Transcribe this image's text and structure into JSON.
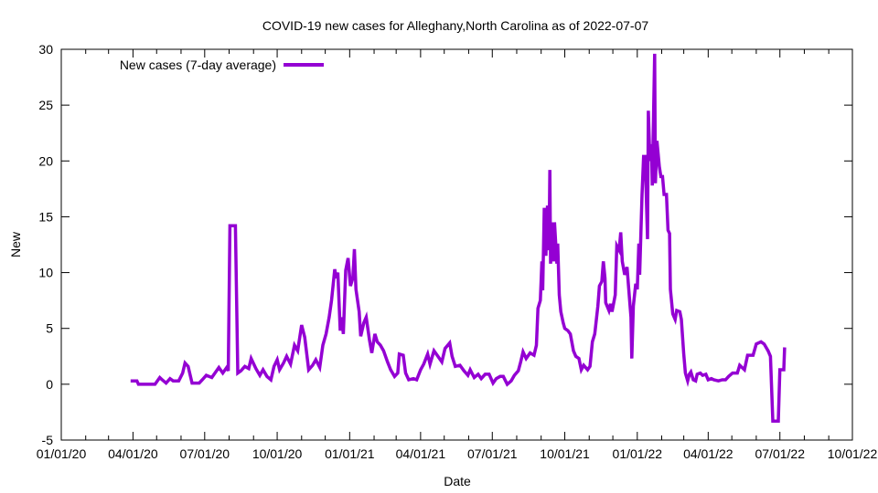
{
  "chart_data": {
    "type": "line",
    "title": "COVID-19 new cases for Alleghany,North Carolina as of 2022-07-07",
    "xlabel": "Date",
    "ylabel": "New",
    "xlim": [
      "2020-01-01",
      "2022-10-01"
    ],
    "ylim": [
      -5,
      30
    ],
    "grid": false,
    "legend_position": "top-left",
    "x_ticks": [
      {
        "date": "2020-01-01",
        "label": "01/01/20"
      },
      {
        "date": "2020-04-01",
        "label": "04/01/20"
      },
      {
        "date": "2020-07-01",
        "label": "07/01/20"
      },
      {
        "date": "2020-10-01",
        "label": "10/01/20"
      },
      {
        "date": "2021-01-01",
        "label": "01/01/21"
      },
      {
        "date": "2021-04-01",
        "label": "04/01/21"
      },
      {
        "date": "2021-07-01",
        "label": "07/01/21"
      },
      {
        "date": "2021-10-01",
        "label": "10/01/21"
      },
      {
        "date": "2022-01-01",
        "label": "01/01/22"
      },
      {
        "date": "2022-04-01",
        "label": "04/01/22"
      },
      {
        "date": "2022-07-01",
        "label": "07/01/22"
      },
      {
        "date": "2022-10-01",
        "label": "10/01/22"
      }
    ],
    "y_ticks": [
      -5,
      0,
      5,
      10,
      15,
      20,
      25,
      30
    ],
    "series": [
      {
        "name": "New cases (7-day average)",
        "color": "#9400d3",
        "dates": [
          "2020-03-29",
          "2020-04-06",
          "2020-04-08",
          "2020-04-29",
          "2020-05-05",
          "2020-05-08",
          "2020-05-13",
          "2020-05-18",
          "2020-05-22",
          "2020-05-29",
          "2020-06-03",
          "2020-06-06",
          "2020-06-10",
          "2020-06-15",
          "2020-06-24",
          "2020-06-28",
          "2020-07-03",
          "2020-07-10",
          "2020-07-19",
          "2020-07-24",
          "2020-07-29",
          "2020-07-31",
          "2020-08-02",
          "2020-08-09",
          "2020-08-12",
          "2020-08-16",
          "2020-08-21",
          "2020-08-26",
          "2020-08-29",
          "2020-09-04",
          "2020-09-09",
          "2020-09-13",
          "2020-09-18",
          "2020-09-23",
          "2020-09-27",
          "2020-10-01",
          "2020-10-04",
          "2020-10-09",
          "2020-10-13",
          "2020-10-18",
          "2020-10-23",
          "2020-10-27",
          "2020-11-01",
          "2020-11-05",
          "2020-11-10",
          "2020-11-15",
          "2020-11-19",
          "2020-11-24",
          "2020-11-28",
          "2020-12-02",
          "2020-12-06",
          "2020-12-09",
          "2020-12-13",
          "2020-12-15",
          "2020-12-17",
          "2020-12-20",
          "2020-12-22",
          "2020-12-24",
          "2020-12-27",
          "2020-12-30",
          "2021-01-02",
          "2021-01-05",
          "2021-01-07",
          "2021-01-09",
          "2021-01-13",
          "2021-01-15",
          "2021-01-19",
          "2021-01-22",
          "2021-01-26",
          "2021-01-29",
          "2021-02-02",
          "2021-02-05",
          "2021-02-09",
          "2021-02-13",
          "2021-02-18",
          "2021-02-22",
          "2021-02-27",
          "2021-03-03",
          "2021-03-05",
          "2021-03-10",
          "2021-03-13",
          "2021-03-17",
          "2021-03-23",
          "2021-03-27",
          "2021-04-01",
          "2021-04-05",
          "2021-04-10",
          "2021-04-13",
          "2021-04-18",
          "2021-04-23",
          "2021-04-28",
          "2021-05-02",
          "2021-05-08",
          "2021-05-11",
          "2021-05-15",
          "2021-05-21",
          "2021-05-26",
          "2021-05-31",
          "2021-06-03",
          "2021-06-08",
          "2021-06-13",
          "2021-06-17",
          "2021-06-22",
          "2021-06-27",
          "2021-07-02",
          "2021-07-06",
          "2021-07-11",
          "2021-07-15",
          "2021-07-20",
          "2021-07-25",
          "2021-07-29",
          "2021-08-03",
          "2021-08-06",
          "2021-08-09",
          "2021-08-13",
          "2021-08-18",
          "2021-08-23",
          "2021-08-26",
          "2021-08-28",
          "2021-08-31",
          "2021-09-02",
          "2021-09-03",
          "2021-09-05",
          "2021-09-07",
          "2021-09-09",
          "2021-09-11",
          "2021-09-12",
          "2021-09-13",
          "2021-09-16",
          "2021-09-17",
          "2021-09-18",
          "2021-09-21",
          "2021-09-22",
          "2021-09-24",
          "2021-09-26",
          "2021-09-29",
          "2021-10-01",
          "2021-10-05",
          "2021-10-08",
          "2021-10-12",
          "2021-10-15",
          "2021-10-19",
          "2021-10-22",
          "2021-10-25",
          "2021-10-30",
          "2021-11-02",
          "2021-11-05",
          "2021-11-08",
          "2021-11-12",
          "2021-11-14",
          "2021-11-17",
          "2021-11-19",
          "2021-11-21",
          "2021-11-22",
          "2021-11-26",
          "2021-11-28",
          "2021-11-30",
          "2021-12-04",
          "2021-12-06",
          "2021-12-09",
          "2021-12-11",
          "2021-12-13",
          "2021-12-16",
          "2021-12-19",
          "2021-12-21",
          "2021-12-24",
          "2021-12-25",
          "2021-12-27",
          "2021-12-30",
          "2022-01-01",
          "2022-01-03",
          "2022-01-04",
          "2022-01-07",
          "2022-01-09",
          "2022-01-11",
          "2022-01-14",
          "2022-01-15",
          "2022-01-17",
          "2022-01-19",
          "2022-01-20",
          "2022-01-23",
          "2022-01-24",
          "2022-01-26",
          "2022-01-29",
          "2022-01-31",
          "2022-02-02",
          "2022-02-04",
          "2022-02-07",
          "2022-02-09",
          "2022-02-11",
          "2022-02-12",
          "2022-02-15",
          "2022-02-18",
          "2022-02-20",
          "2022-02-24",
          "2022-02-26",
          "2022-03-01",
          "2022-03-03",
          "2022-03-06",
          "2022-03-08",
          "2022-03-10",
          "2022-03-13",
          "2022-03-16",
          "2022-03-18",
          "2022-03-22",
          "2022-03-25",
          "2022-03-29",
          "2022-04-01",
          "2022-04-05",
          "2022-04-08",
          "2022-04-14",
          "2022-04-19",
          "2022-04-23",
          "2022-04-27",
          "2022-05-02",
          "2022-05-08",
          "2022-05-11",
          "2022-05-17",
          "2022-05-21",
          "2022-05-28",
          "2022-06-01",
          "2022-06-07",
          "2022-06-11",
          "2022-06-16",
          "2022-06-19",
          "2022-06-22",
          "2022-06-29",
          "2022-07-01",
          "2022-07-06",
          "2022-07-07"
        ],
        "values": [
          0.3,
          0.3,
          0,
          0,
          0.6,
          0.4,
          0.1,
          0.5,
          0.3,
          0.3,
          1.0,
          1.9,
          1.6,
          0.1,
          0.1,
          0.4,
          0.8,
          0.6,
          1.5,
          1.0,
          1.5,
          1.2,
          14.2,
          14.2,
          1.0,
          1.2,
          1.6,
          1.4,
          2.3,
          1.4,
          0.8,
          1.3,
          0.7,
          0.4,
          1.6,
          2.2,
          1.3,
          1.9,
          2.5,
          1.8,
          3.5,
          3.0,
          5.3,
          4.2,
          1.3,
          1.7,
          2.2,
          1.5,
          3.5,
          4.5,
          6,
          7.5,
          10.3,
          9.5,
          10,
          4.8,
          6,
          4.5,
          10.2,
          11.3,
          8.8,
          9.5,
          12.1,
          8.5,
          6.5,
          4.3,
          5.5,
          6.0,
          4.0,
          2.8,
          4.5,
          3.8,
          3.5,
          3.0,
          2.0,
          1.3,
          0.7,
          1.0,
          2.7,
          2.6,
          1.0,
          0.4,
          0.5,
          0.4,
          1.3,
          1.8,
          2.7,
          1.8,
          3.0,
          2.5,
          2.0,
          3.2,
          3.7,
          2.5,
          1.6,
          1.7,
          1.2,
          0.8,
          1.3,
          0.6,
          0.9,
          0.5,
          0.9,
          0.9,
          0.1,
          0.5,
          0.7,
          0.7,
          0.0,
          0.3,
          0.8,
          1.2,
          2.0,
          2.9,
          2.3,
          2.8,
          2.6,
          3.5,
          6.8,
          7.5,
          11.0,
          8.4,
          15.8,
          11.5,
          16,
          12,
          19.2,
          10.8,
          14.5,
          11,
          14.5,
          10.8,
          12.6,
          8,
          6.5,
          5.5,
          5.0,
          4.8,
          4.5,
          3.0,
          2.5,
          2.3,
          1.3,
          1.7,
          1.3,
          1.6,
          3.8,
          4.5,
          7,
          8.8,
          9.2,
          11,
          9.5,
          7.3,
          6.6,
          7.2,
          6.5,
          8.0,
          12.4,
          12.0,
          13.6,
          11.0,
          9.8,
          10.5,
          8.7,
          6,
          2.3,
          7.0,
          9.0,
          8.5,
          12.6,
          9.8,
          17,
          20.4,
          20.4,
          13,
          24.5,
          20,
          21.5,
          17.8,
          29.6,
          18,
          21.8,
          19.5,
          18.6,
          18.6,
          17.0,
          17.0,
          13.8,
          13.5,
          8.5,
          6.3,
          5.8,
          6.6,
          6.5,
          5.8,
          2.7,
          1.0,
          0.3,
          0.9,
          1.1,
          0.4,
          0.3,
          0.9,
          1.0,
          0.8,
          0.9,
          0.4,
          0.5,
          0.4,
          0.3,
          0.4,
          0.4,
          0.7,
          1.0,
          1.0,
          1.7,
          1.3,
          2.6,
          2.6,
          3.6,
          3.8,
          3.6,
          3.0,
          2.5,
          -3.3,
          -3.3,
          1.3,
          1.3,
          3.3
        ]
      }
    ]
  }
}
